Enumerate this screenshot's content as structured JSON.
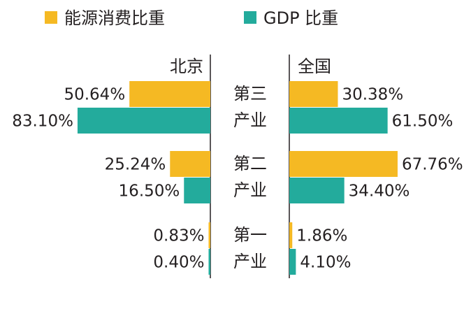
{
  "chart_data": {
    "type": "bar",
    "legend": [
      {
        "label": "能源消费比重",
        "color": "#f5b923"
      },
      {
        "label": "GDP 比重",
        "color": "#23ab9c"
      }
    ],
    "panels": [
      {
        "label": "北京",
        "direction": "left"
      },
      {
        "label": "全国",
        "direction": "right"
      }
    ],
    "categories": [
      {
        "line1": "第三",
        "line2": "产业"
      },
      {
        "line1": "第二",
        "line2": "产业"
      },
      {
        "line1": "第一",
        "line2": "产业"
      }
    ],
    "series": [
      {
        "key": "energy",
        "name": "能源消费比重",
        "color": "#f5b923",
        "beijing": [
          50.64,
          25.24,
          0.83
        ],
        "beijing_labels": [
          "50.64%",
          "25.24%",
          "0.83%"
        ],
        "china": [
          30.38,
          67.76,
          1.86
        ],
        "china_labels": [
          "30.38%",
          "67.76%",
          "1.86%"
        ]
      },
      {
        "key": "gdp",
        "name": "GDP 比重",
        "color": "#23ab9c",
        "beijing": [
          83.1,
          16.5,
          0.4
        ],
        "beijing_labels": [
          "83.10%",
          "16.50%",
          "0.40%"
        ],
        "china": [
          61.5,
          34.4,
          4.1
        ],
        "china_labels": [
          "61.50%",
          "34.40%",
          "4.10%"
        ]
      }
    ],
    "unit": "%"
  }
}
